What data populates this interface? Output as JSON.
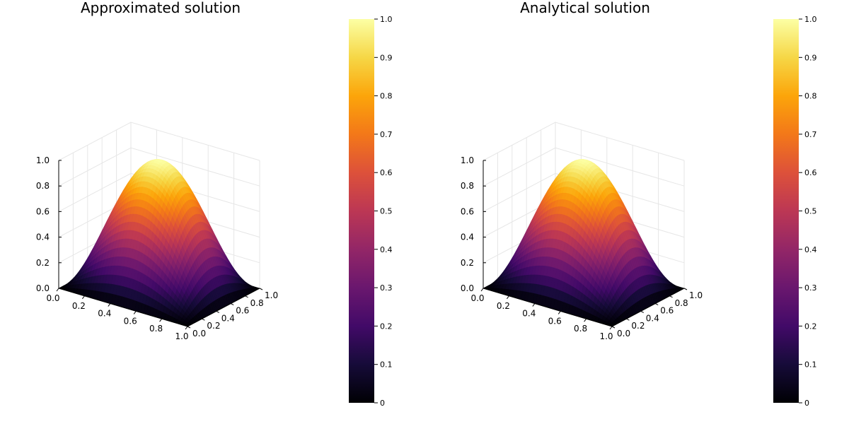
{
  "chart_data": [
    {
      "type": "surface",
      "title": "Approximated solution",
      "function": "sin(pi*x)*sin(pi*y)",
      "x": [
        0.0,
        0.2,
        0.4,
        0.6,
        0.8,
        1.0
      ],
      "y": [
        0.0,
        0.2,
        0.4,
        0.6,
        0.8,
        1.0
      ],
      "z": [
        [
          0.0,
          0.0,
          0.0,
          0.0,
          0.0,
          0.0
        ],
        [
          0.0,
          0.345,
          0.559,
          0.559,
          0.345,
          0.0
        ],
        [
          0.0,
          0.559,
          0.905,
          0.905,
          0.559,
          0.0
        ],
        [
          0.0,
          0.559,
          0.905,
          0.905,
          0.559,
          0.0
        ],
        [
          0.0,
          0.345,
          0.559,
          0.559,
          0.345,
          0.0
        ],
        [
          0.0,
          0.0,
          0.0,
          0.0,
          0.0,
          0.0
        ]
      ],
      "xticks": [
        "0.0",
        "0.2",
        "0.4",
        "0.6",
        "0.8",
        "1.0"
      ],
      "yticks": [
        "0.0",
        "0.2",
        "0.4",
        "0.6",
        "0.8",
        "1.0"
      ],
      "zticks": [
        "0.0",
        "0.2",
        "0.4",
        "0.6",
        "0.8",
        "1.0"
      ],
      "xlim": [
        0,
        1
      ],
      "ylim": [
        0,
        1
      ],
      "zlim": [
        0,
        1
      ],
      "colormap": "inferno",
      "colorbar": {
        "range": [
          0,
          1
        ],
        "ticks": [
          "0",
          "0.1",
          "0.2",
          "0.3",
          "0.4",
          "0.5",
          "0.6",
          "0.7",
          "0.8",
          "0.9",
          "1.0"
        ]
      },
      "grid": true
    },
    {
      "type": "surface",
      "title": "Analytical solution",
      "function": "sin(pi*x)*sin(pi*y)",
      "x": [
        0.0,
        0.2,
        0.4,
        0.6,
        0.8,
        1.0
      ],
      "y": [
        0.0,
        0.2,
        0.4,
        0.6,
        0.8,
        1.0
      ],
      "z": [
        [
          0.0,
          0.0,
          0.0,
          0.0,
          0.0,
          0.0
        ],
        [
          0.0,
          0.345,
          0.559,
          0.559,
          0.345,
          0.0
        ],
        [
          0.0,
          0.559,
          0.905,
          0.905,
          0.559,
          0.0
        ],
        [
          0.0,
          0.559,
          0.905,
          0.905,
          0.559,
          0.0
        ],
        [
          0.0,
          0.345,
          0.559,
          0.559,
          0.345,
          0.0
        ],
        [
          0.0,
          0.0,
          0.0,
          0.0,
          0.0,
          0.0
        ]
      ],
      "xticks": [
        "0.0",
        "0.2",
        "0.4",
        "0.6",
        "0.8",
        "1.0"
      ],
      "yticks": [
        "0.0",
        "0.2",
        "0.4",
        "0.6",
        "0.8",
        "1.0"
      ],
      "zticks": [
        "0.0",
        "0.2",
        "0.4",
        "0.6",
        "0.8",
        "1.0"
      ],
      "xlim": [
        0,
        1
      ],
      "ylim": [
        0,
        1
      ],
      "zlim": [
        0,
        1
      ],
      "colormap": "inferno",
      "colorbar": {
        "range": [
          0,
          1
        ],
        "ticks": [
          "0",
          "0.1",
          "0.2",
          "0.3",
          "0.4",
          "0.5",
          "0.6",
          "0.7",
          "0.8",
          "0.9",
          "1.0"
        ]
      },
      "grid": true
    }
  ]
}
